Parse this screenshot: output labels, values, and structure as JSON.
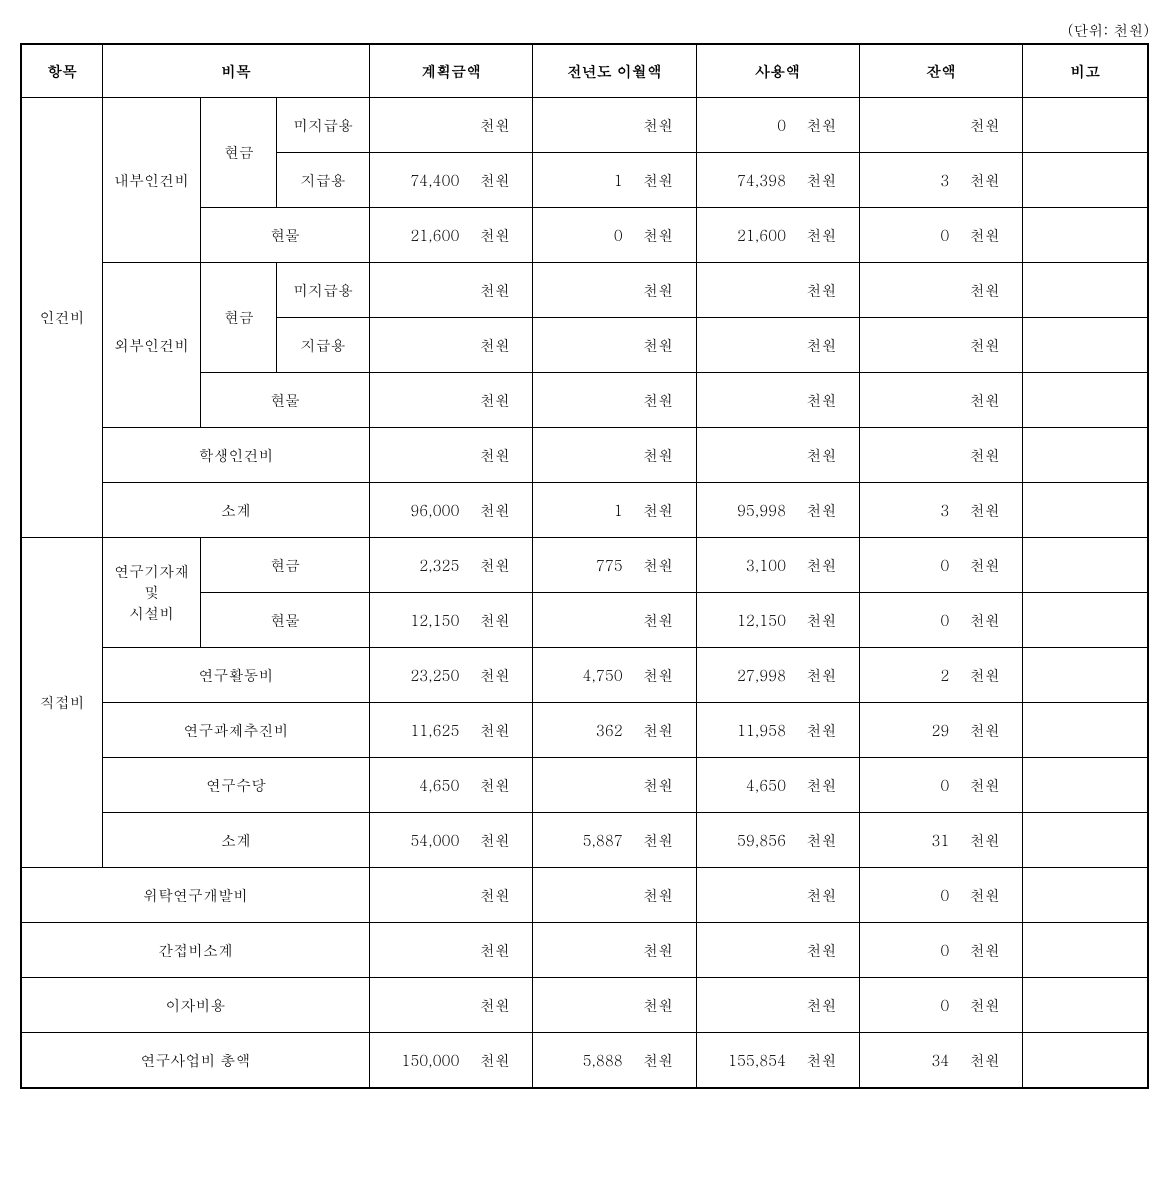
{
  "unit_text": "(단위: 천원)",
  "unit_suffix": "천원",
  "headers": {
    "item": "항목",
    "category": "비목",
    "plan": "계획금액",
    "carryover": "전년도 이월액",
    "used": "사용액",
    "balance": "잔액",
    "remark": "비고"
  },
  "labels": {
    "personnel": "인건비",
    "internal": "내부인건비",
    "external": "외부인건비",
    "cash": "현금",
    "inkind": "현물",
    "unpaid": "미지급용",
    "paid": "지급용",
    "student": "학생인건비",
    "subtotal": "소계",
    "direct": "직접비",
    "equip": "연구기자재\n및\n시설비",
    "equip_l1": "연구기자재",
    "equip_l2": "및",
    "equip_l3": "시설비",
    "activity": "연구활동비",
    "promotion": "연구과제추진비",
    "allowance": "연구수당",
    "outsourced": "위탁연구개발비",
    "indirect": "간접비소계",
    "interest": "이자비용",
    "total": "연구사업비 총액"
  },
  "rows": {
    "int_cash_unpaid": {
      "plan": "",
      "carry": "",
      "used": "0",
      "bal": ""
    },
    "int_cash_paid": {
      "plan": "74,400",
      "carry": "1",
      "used": "74,398",
      "bal": "3"
    },
    "int_inkind": {
      "plan": "21,600",
      "carry": "0",
      "used": "21,600",
      "bal": "0"
    },
    "ext_cash_unpaid": {
      "plan": "",
      "carry": "",
      "used": "",
      "bal": ""
    },
    "ext_cash_paid": {
      "plan": "",
      "carry": "",
      "used": "",
      "bal": ""
    },
    "ext_inkind": {
      "plan": "",
      "carry": "",
      "used": "",
      "bal": ""
    },
    "student": {
      "plan": "",
      "carry": "",
      "used": "",
      "bal": ""
    },
    "pers_sub": {
      "plan": "96,000",
      "carry": "1",
      "used": "95,998",
      "bal": "3"
    },
    "equip_cash": {
      "plan": "2,325",
      "carry": "775",
      "used": "3,100",
      "bal": "0"
    },
    "equip_inkind": {
      "plan": "12,150",
      "carry": "",
      "used": "12,150",
      "bal": "0"
    },
    "activity": {
      "plan": "23,250",
      "carry": "4,750",
      "used": "27,998",
      "bal": "2"
    },
    "promotion": {
      "plan": "11,625",
      "carry": "362",
      "used": "11,958",
      "bal": "29"
    },
    "allowance": {
      "plan": "4,650",
      "carry": "",
      "used": "4,650",
      "bal": "0"
    },
    "direct_sub": {
      "plan": "54,000",
      "carry": "5,887",
      "used": "59,856",
      "bal": "31"
    },
    "outsourced": {
      "plan": "",
      "carry": "",
      "used": "",
      "bal": "0"
    },
    "indirect": {
      "plan": "",
      "carry": "",
      "used": "",
      "bal": "0"
    },
    "interest": {
      "plan": "",
      "carry": "",
      "used": "",
      "bal": "0"
    },
    "total": {
      "plan": "150,000",
      "carry": "5,888",
      "used": "155,854",
      "bal": "34"
    }
  }
}
